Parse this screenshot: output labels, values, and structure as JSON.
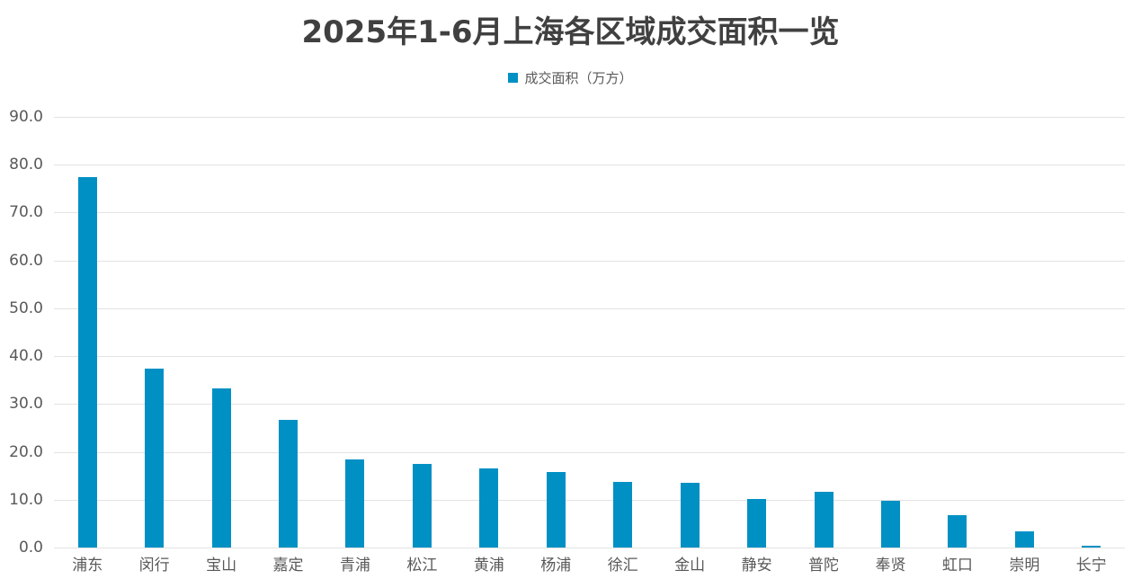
{
  "chart_data": {
    "type": "bar",
    "title": "2025年1-6月上海各区域成交面积一览",
    "xlabel": "",
    "ylabel": "",
    "ylim": [
      0,
      90
    ],
    "yticks": [
      "0.0",
      "10.0",
      "20.0",
      "30.0",
      "40.0",
      "50.0",
      "60.0",
      "70.0",
      "80.0",
      "90.0"
    ],
    "grid": true,
    "legend_position": "top",
    "color": "#0090c4",
    "categories": [
      "浦东",
      "闵行",
      "宝山",
      "嘉定",
      "青浦",
      "松江",
      "黄浦",
      "杨浦",
      "徐汇",
      "金山",
      "静安",
      "普陀",
      "奉贤",
      "虹口",
      "崇明",
      "长宁"
    ],
    "series": [
      {
        "name": "成交面积（万方）",
        "values": [
          77.4,
          37.4,
          33.2,
          26.6,
          18.4,
          17.4,
          16.6,
          15.7,
          13.8,
          13.5,
          10.2,
          11.6,
          9.7,
          6.7,
          3.4,
          0.4
        ]
      }
    ]
  }
}
